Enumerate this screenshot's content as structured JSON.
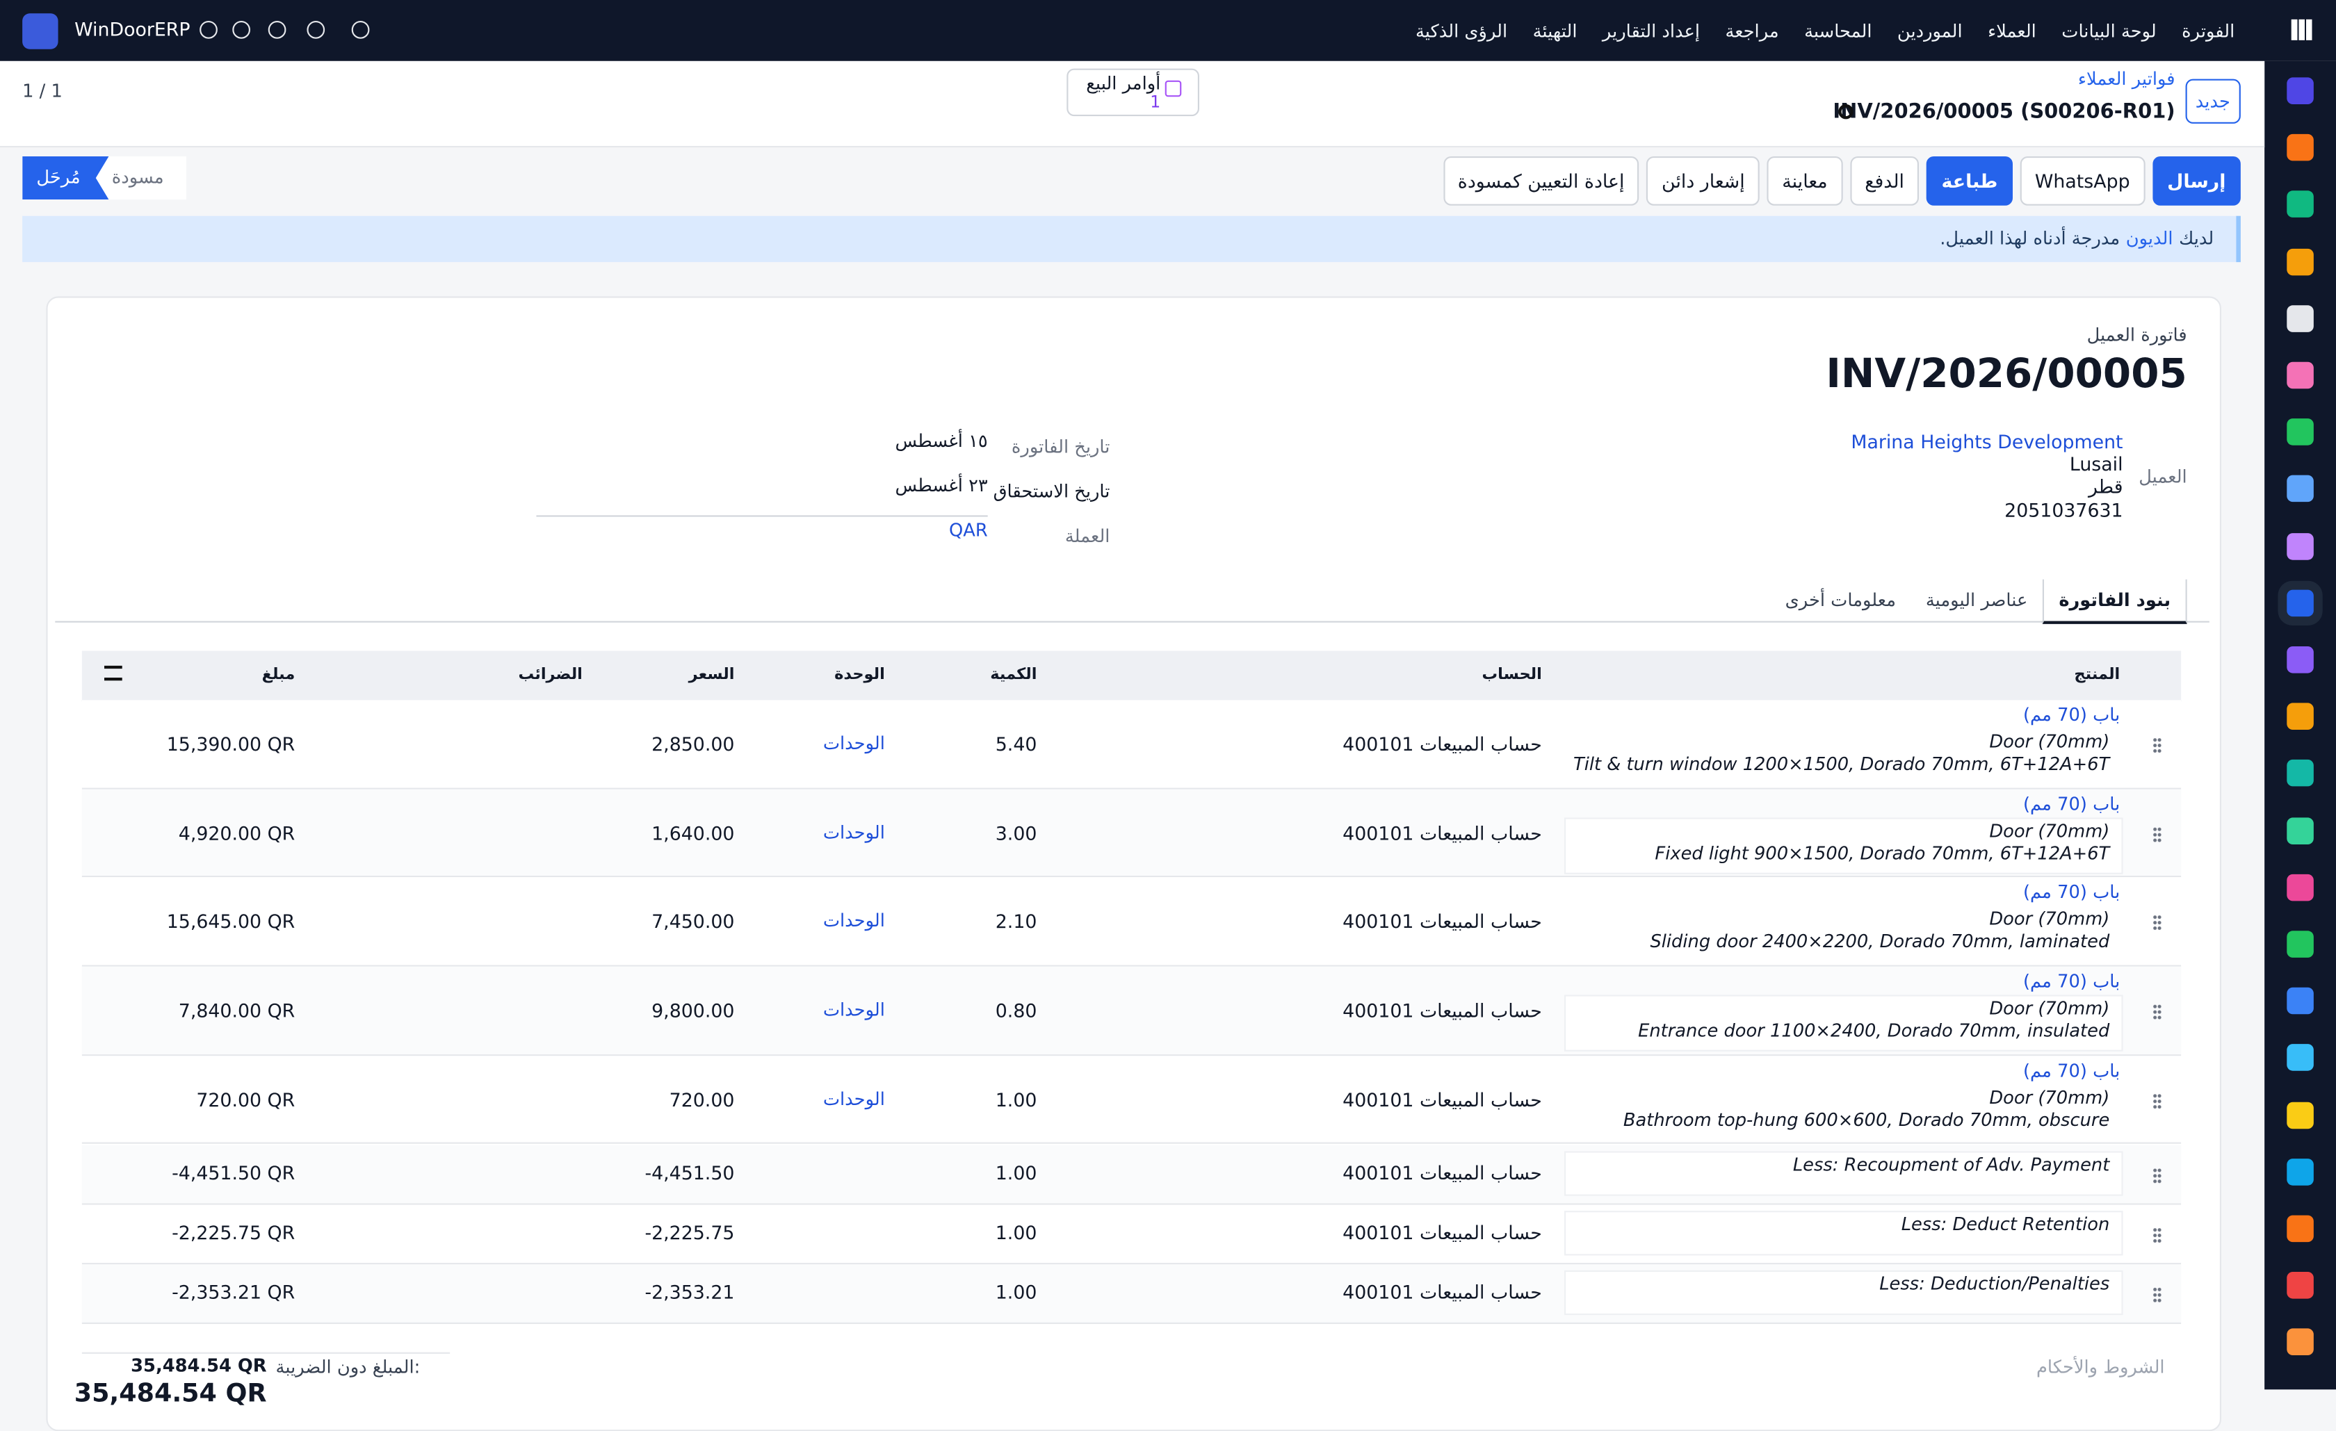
{
  "navbar": {
    "company": "WinDoorERP",
    "menu": [
      "الفوترة",
      "لوحة البيانات",
      "العملاء",
      "الموردين",
      "المحاسبة",
      "مراجعة",
      "إعداد التقارير",
      "التهيئة",
      "الرؤى الذكية"
    ]
  },
  "breadcrumb": {
    "new": "جديد",
    "parent": "فواتير العملاء",
    "record": "INV/2026/00005 (S00206-R01)"
  },
  "smart_button": {
    "label": "أوامر البيع",
    "count": "1"
  },
  "pager": "1 / 1",
  "actions": [
    "إرسال",
    "WhatsApp",
    "طباعة",
    "الدفع",
    "معاينة",
    "إشعار دائن",
    "إعادة التعيين كمسودة"
  ],
  "status": [
    "مُرحَل",
    "مسودة"
  ],
  "alert": {
    "prefix": "لديك",
    "link": "الديون",
    "suffix": "مدرجة أدناه لهذا العميل."
  },
  "form": {
    "label": "فاتورة العميل",
    "number": "INV/2026/00005",
    "customer_label": "العميل",
    "customer": [
      "Marina Heights Development",
      "Lusail",
      "قطر",
      "2051037631"
    ],
    "fields": [
      {
        "label": "تاريخ الفاتورة",
        "value": "١٥ أغسطس"
      },
      {
        "label": "تاريخ الاستحقاق",
        "value": "٢٣ أغسطس"
      },
      {
        "label": "العملة",
        "value": "QAR"
      }
    ]
  },
  "tabs": [
    "بنود الفاتورة",
    "عناصر اليومية",
    "معلومات أخرى"
  ],
  "table": {
    "headers": [
      "المنتج",
      "الحساب",
      "الكمية",
      "الوحدة",
      "السعر",
      "الضرائب",
      "مبلغ"
    ],
    "rows": [
      {
        "product": "باب (70 مم)",
        "name": "Door (70mm)",
        "description": "Tilt & turn window 1200×1500, Dorado 70mm, 6T+12A+6T",
        "account": "400101 حساب المبيعات",
        "quantity": "5.40",
        "unit": "الوحدات",
        "price": "2,850.00",
        "amount": "15,390.00 QR"
      },
      {
        "product": "باب (70 مم)",
        "name": "Door (70mm)",
        "description": "Fixed light 900×1500, Dorado 70mm, 6T+12A+6T",
        "account": "400101 حساب المبيعات",
        "quantity": "3.00",
        "unit": "الوحدات",
        "price": "1,640.00",
        "amount": "4,920.00 QR"
      },
      {
        "product": "باب (70 مم)",
        "name": "Door (70mm)",
        "description": "Sliding door 2400×2200, Dorado 70mm, laminated",
        "account": "400101 حساب المبيعات",
        "quantity": "2.10",
        "unit": "الوحدات",
        "price": "7,450.00",
        "amount": "15,645.00 QR"
      },
      {
        "product": "باب (70 مم)",
        "name": "Door (70mm)",
        "description": "Entrance door 1100×2400, Dorado 70mm, insulated",
        "account": "400101 حساب المبيعات",
        "quantity": "0.80",
        "unit": "الوحدات",
        "price": "9,800.00",
        "amount": "7,840.00 QR"
      },
      {
        "product": "باب (70 مم)",
        "name": "Door (70mm)",
        "description": "Bathroom top-hung 600×600, Dorado 70mm, obscure",
        "account": "400101 حساب المبيعات",
        "quantity": "1.00",
        "unit": "الوحدات",
        "price": "720.00",
        "amount": "720.00 QR"
      },
      {
        "description": "Less: Recoupment of Adv. Payment",
        "account": "400101 حساب المبيعات",
        "quantity": "1.00",
        "price": "-4,451.50",
        "amount": "-4,451.50 QR"
      },
      {
        "description": "Less: Deduct Retention",
        "account": "400101 حساب المبيعات",
        "quantity": "1.00",
        "price": "-2,225.75",
        "amount": "-2,225.75 QR"
      },
      {
        "description": "Less: Deduction/Penalties",
        "account": "400101 حساب المبيعات",
        "quantity": "1.00",
        "price": "-2,353.21",
        "amount": "-2,353.21 QR"
      }
    ]
  },
  "totals": {
    "terms": "الشروط والأحكام",
    "untaxed_label": "المبلغ دون الضريبة:",
    "untaxed": "35,484.54 QR",
    "total": "35,484.54 QR"
  }
}
